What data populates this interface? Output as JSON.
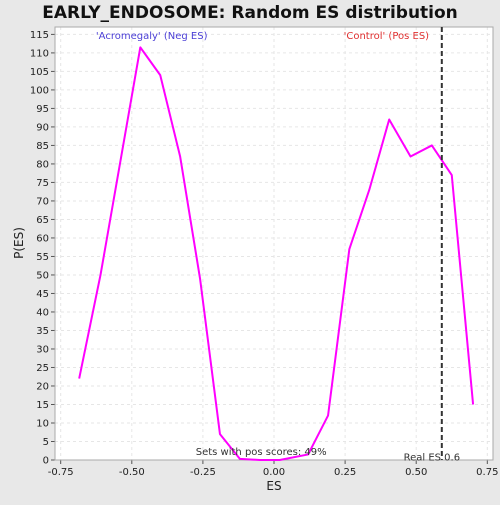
{
  "chart_data": {
    "type": "line",
    "title": "EARLY_ENDOSOME: Random ES distribution",
    "xlabel": "ES",
    "ylabel": "P(ES)",
    "xlim": [
      -0.77,
      0.77
    ],
    "ylim": [
      0,
      117
    ],
    "xticks": [
      -0.75,
      -0.5,
      -0.25,
      0.0,
      0.25,
      0.5,
      0.75
    ],
    "xtick_labels": [
      "-0.75",
      "-0.50",
      "-0.25",
      "0.00",
      "0.25",
      "0.50",
      "0.75"
    ],
    "yticks": [
      0,
      5,
      10,
      15,
      20,
      25,
      30,
      35,
      40,
      45,
      50,
      55,
      60,
      65,
      70,
      75,
      80,
      85,
      90,
      95,
      100,
      105,
      110,
      115
    ],
    "grid": true,
    "series": [
      {
        "color": "#ff00ff",
        "x": [
          -0.685,
          -0.61,
          -0.47,
          -0.4,
          -0.33,
          -0.26,
          -0.19,
          -0.12,
          -0.05,
          0.02,
          0.12,
          0.19,
          0.265,
          0.335,
          0.405,
          0.48,
          0.555,
          0.625,
          0.7
        ],
        "y": [
          22,
          50,
          111.5,
          104,
          82,
          49,
          7,
          0.3,
          0,
          0,
          1.5,
          12,
          57,
          73,
          92,
          82,
          85,
          77,
          15
        ]
      }
    ],
    "real_es": 0.59,
    "annotations": {
      "neg_label": "'Acromegaly' (Neg ES)",
      "pos_label": "'Control' (Pos ES)",
      "pos_scores": "Sets with pos scores: 49%",
      "real_es_label": "Real ES 0.6"
    },
    "colors": {
      "line": "#ff00ff",
      "neg_label": "#4b3fd6",
      "pos_label": "#e03030",
      "grid": "#e6e6e6",
      "background": "#ffffff",
      "frame_background": "#e8e8e8"
    }
  }
}
